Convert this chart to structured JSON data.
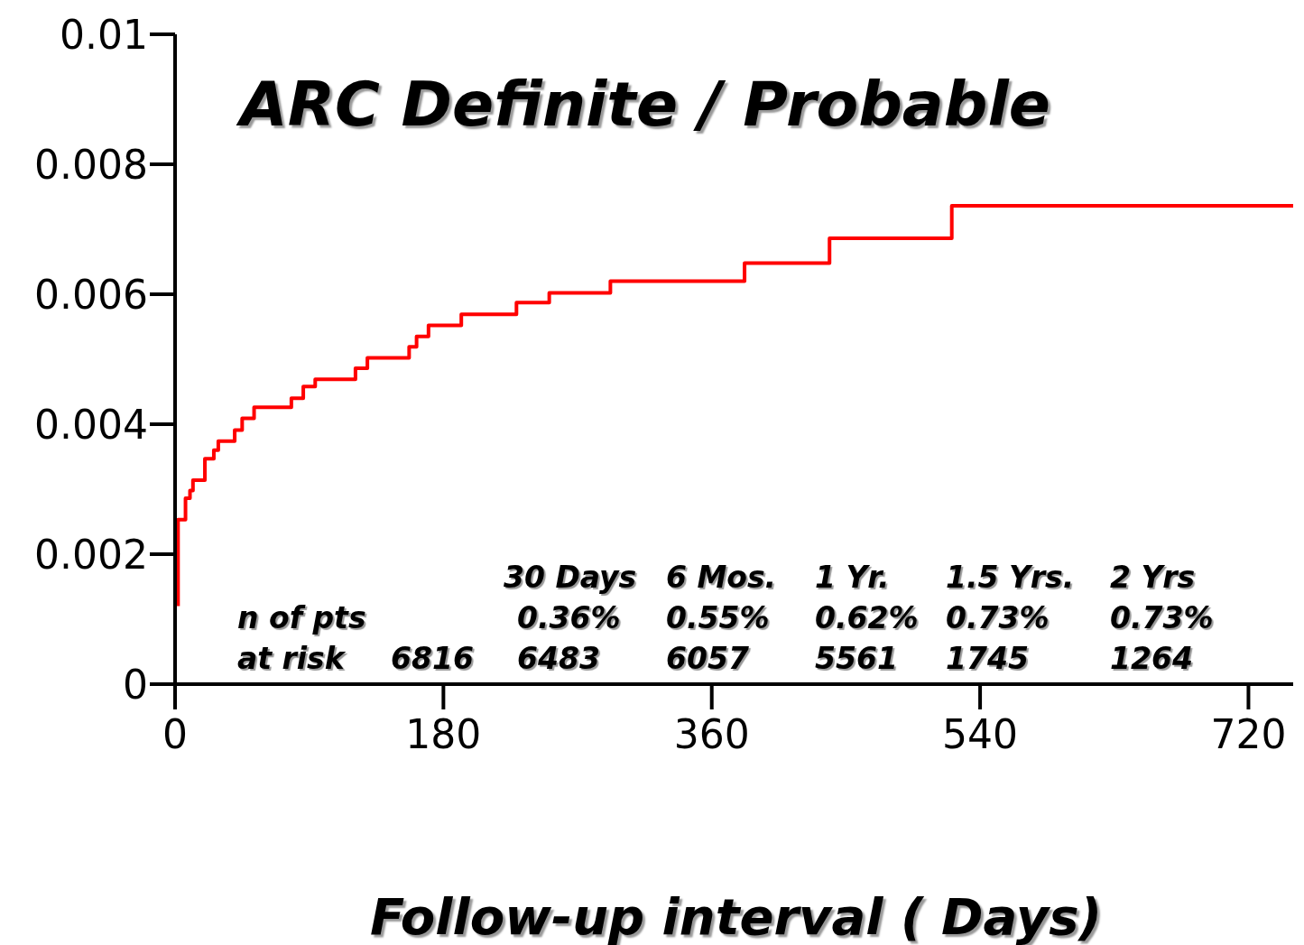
{
  "chart_data": {
    "type": "step",
    "title": "ARC Definite / Probable",
    "xlabel": "Follow-up interval ( Days)",
    "xlim": [
      0,
      750
    ],
    "xticks": [
      0,
      180,
      360,
      540,
      720
    ],
    "ylim": [
      0,
      0.01
    ],
    "yticks": [
      0,
      0.002,
      0.004,
      0.006,
      0.008,
      0.01
    ],
    "series": [
      {
        "color": "#ff0000",
        "x": [
          2,
          2,
          7,
          10,
          12,
          20,
          26,
          29,
          40,
          45,
          53,
          78,
          86,
          94,
          121,
          129,
          157,
          162,
          170,
          192,
          229,
          251,
          292,
          382,
          439,
          521,
          750
        ],
        "values": [
          0.0012,
          0.00253,
          0.00286,
          0.00298,
          0.00314,
          0.00347,
          0.0036,
          0.00374,
          0.00391,
          0.00409,
          0.00426,
          0.0044,
          0.00458,
          0.00469,
          0.00486,
          0.00502,
          0.00519,
          0.00535,
          0.00552,
          0.00569,
          0.00587,
          0.00602,
          0.0062,
          0.00648,
          0.00686,
          0.00736,
          0.00736
        ]
      }
    ],
    "annotations": [
      "30 Days",
      "6 Mos.",
      "1 Yr.",
      "1.5 Yrs.",
      "2 Yrs",
      "n of pts",
      "0.36%",
      "0.55%",
      "0.62%",
      "0.73%",
      "0.73%",
      "at risk",
      "6816",
      "6483",
      "6057",
      "5561",
      "1745",
      "1264"
    ]
  }
}
